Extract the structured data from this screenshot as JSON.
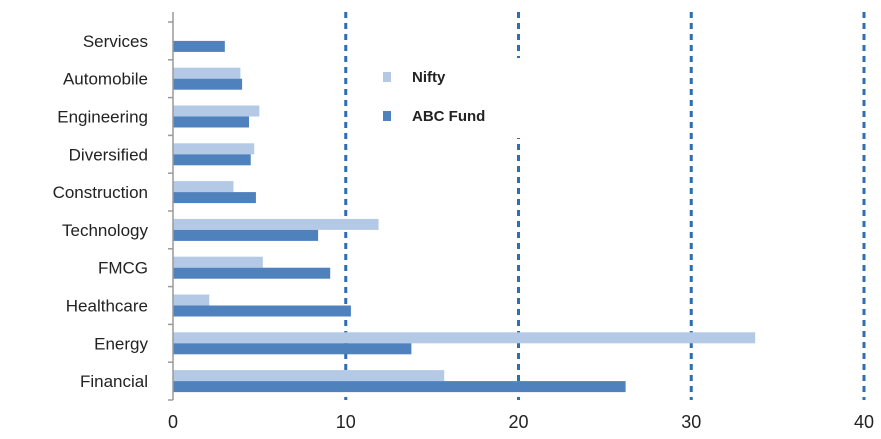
{
  "chart_data": {
    "type": "bar",
    "orientation": "horizontal",
    "categories": [
      "Services",
      "Automobile",
      "Engineering",
      "Diversified",
      "Construction",
      "Technology",
      "FMCG",
      "Healthcare",
      "Energy",
      "Financial"
    ],
    "series": [
      {
        "name": "Nifty",
        "color": "#b3c9e6",
        "values": [
          0,
          3.9,
          5.0,
          4.7,
          3.5,
          11.9,
          5.2,
          2.1,
          33.7,
          15.7
        ]
      },
      {
        "name": "ABC Fund",
        "color": "#4f81bd",
        "values": [
          3.0,
          4.0,
          4.4,
          4.5,
          4.8,
          8.4,
          9.1,
          10.3,
          13.8,
          26.2
        ]
      }
    ],
    "xlim": [
      0,
      40
    ],
    "xticks": [
      0,
      10,
      20,
      30,
      40
    ],
    "gridlines": "vertical dashed",
    "legend_position": "top-center",
    "title": "",
    "xlabel": "",
    "ylabel": ""
  }
}
